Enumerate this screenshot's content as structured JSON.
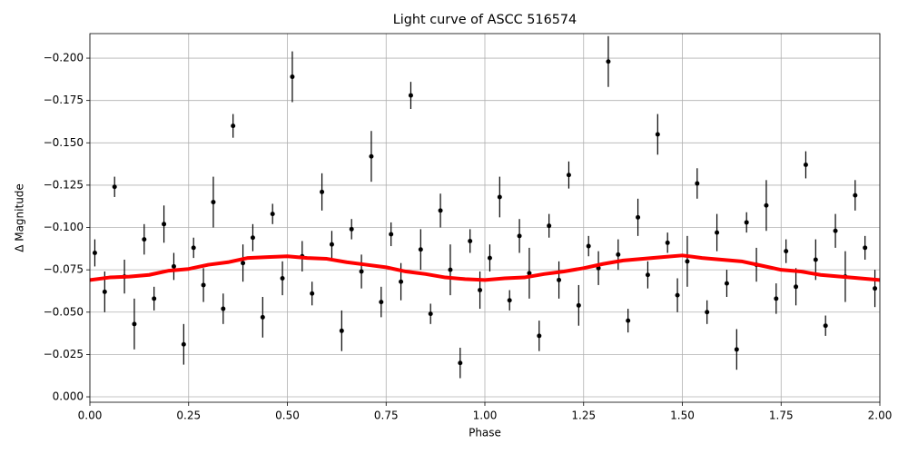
{
  "chart_data": {
    "type": "errorbar",
    "title": "Light curve of ASCC 516574",
    "x_label": "Phase",
    "y_label": "Δ Magnitude",
    "grid": true,
    "xlim": [
      0,
      2
    ],
    "ylim": [
      0.0032,
      -0.2145
    ],
    "xticks": [
      {
        "value": 0,
        "label": "0.00"
      },
      {
        "value": 0.25,
        "label": "0.25"
      },
      {
        "value": 0.5,
        "label": "0.50"
      },
      {
        "value": 0.75,
        "label": "0.75"
      },
      {
        "value": 1,
        "label": "1.00"
      },
      {
        "value": 1.25,
        "label": "1.25"
      },
      {
        "value": 1.5,
        "label": "1.50"
      },
      {
        "value": 1.75,
        "label": "1.75"
      },
      {
        "value": 2,
        "label": "2.00"
      }
    ],
    "yticks": [
      {
        "value": 0,
        "label": "0.000"
      },
      {
        "value": -0.025,
        "label": "−0.025"
      },
      {
        "value": -0.05,
        "label": "−0.050"
      },
      {
        "value": -0.075,
        "label": "−0.075"
      },
      {
        "value": -0.1,
        "label": "−0.100"
      },
      {
        "value": -0.125,
        "label": "−0.125"
      },
      {
        "value": -0.15,
        "label": "−0.150"
      },
      {
        "value": -0.175,
        "label": "−0.175"
      },
      {
        "value": -0.2,
        "label": "−0.200"
      }
    ],
    "series": [
      {
        "type": "errorbar",
        "color": "#000000",
        "x": [
          0.0125,
          0.0375,
          0.0625,
          0.0875,
          0.1125,
          0.1375,
          0.1625,
          0.1875,
          0.2125,
          0.2375,
          0.2625,
          0.2875,
          0.3125,
          0.3375,
          0.3625,
          0.3875,
          0.4125,
          0.4375,
          0.4625,
          0.4875,
          0.5125,
          0.5375,
          0.5625,
          0.5875,
          0.6125,
          0.6375,
          0.6625,
          0.6875,
          0.7125,
          0.7375,
          0.7625,
          0.7875,
          0.8125,
          0.8375,
          0.8625,
          0.8875,
          0.9125,
          0.9375,
          0.9625,
          0.9875,
          1.0125,
          1.0375,
          1.0625,
          1.0875,
          1.1125,
          1.1375,
          1.1625,
          1.1875,
          1.2125,
          1.2375,
          1.2625,
          1.2875,
          1.3125,
          1.3375,
          1.3625,
          1.3875,
          1.4125,
          1.4375,
          1.4625,
          1.4875,
          1.5125,
          1.5375,
          1.5625,
          1.5875,
          1.6125,
          1.6375,
          1.6625,
          1.6875,
          1.7125,
          1.7375,
          1.7625,
          1.7875,
          1.8125,
          1.8375,
          1.8625,
          1.8875,
          1.9125,
          1.9375,
          1.9625,
          1.9875
        ],
        "values": [
          -0.085,
          -0.062,
          -0.124,
          -0.071,
          -0.043,
          -0.093,
          -0.058,
          -0.102,
          -0.077,
          -0.031,
          -0.088,
          -0.066,
          -0.115,
          -0.052,
          -0.16,
          -0.079,
          -0.094,
          -0.047,
          -0.108,
          -0.07,
          -0.189,
          -0.083,
          -0.061,
          -0.121,
          -0.09,
          -0.039,
          -0.099,
          -0.074,
          -0.142,
          -0.056,
          -0.096,
          -0.068,
          -0.178,
          -0.087,
          -0.049,
          -0.11,
          -0.075,
          -0.02,
          -0.092,
          -0.063,
          -0.082,
          -0.118,
          -0.057,
          -0.095,
          -0.073,
          -0.036,
          -0.101,
          -0.069,
          -0.131,
          -0.054,
          -0.089,
          -0.076,
          -0.198,
          -0.084,
          -0.045,
          -0.106,
          -0.072,
          -0.155,
          -0.091,
          -0.06,
          -0.08,
          -0.126,
          -0.05,
          -0.097,
          -0.067,
          -0.028,
          -0.103,
          -0.078,
          -0.113,
          -0.058,
          -0.086,
          -0.065,
          -0.137,
          -0.081,
          -0.042,
          -0.098,
          -0.071,
          -0.119,
          -0.088,
          -0.064
        ],
        "errors": [
          0.008,
          0.012,
          0.006,
          0.01,
          0.015,
          0.009,
          0.007,
          0.011,
          0.008,
          0.012,
          0.006,
          0.01,
          0.015,
          0.009,
          0.007,
          0.011,
          0.008,
          0.012,
          0.006,
          0.01,
          0.015,
          0.009,
          0.007,
          0.011,
          0.008,
          0.012,
          0.006,
          0.01,
          0.015,
          0.009,
          0.007,
          0.011,
          0.008,
          0.012,
          0.006,
          0.01,
          0.015,
          0.009,
          0.007,
          0.011,
          0.008,
          0.012,
          0.006,
          0.01,
          0.015,
          0.009,
          0.007,
          0.011,
          0.008,
          0.012,
          0.006,
          0.01,
          0.015,
          0.009,
          0.007,
          0.011,
          0.008,
          0.012,
          0.006,
          0.01,
          0.015,
          0.009,
          0.007,
          0.011,
          0.008,
          0.012,
          0.006,
          0.01,
          0.015,
          0.009,
          0.007,
          0.011,
          0.008,
          0.012,
          0.006,
          0.01,
          0.015,
          0.009,
          0.007,
          0.011
        ]
      },
      {
        "type": "line",
        "color": "#ff0000",
        "x": [
          0,
          0.05,
          0.1,
          0.15,
          0.2,
          0.25,
          0.3,
          0.35,
          0.4,
          0.45,
          0.5,
          0.55,
          0.6,
          0.65,
          0.7,
          0.75,
          0.8,
          0.85,
          0.9,
          0.95,
          1,
          1.05,
          1.1,
          1.15,
          1.2,
          1.25,
          1.3,
          1.35,
          1.4,
          1.45,
          1.5,
          1.55,
          1.6,
          1.65,
          1.7,
          1.75,
          1.8,
          1.85,
          1.9,
          1.95,
          2
        ],
        "values": [
          -0.069,
          -0.0705,
          -0.071,
          -0.072,
          -0.0745,
          -0.0755,
          -0.078,
          -0.0795,
          -0.082,
          -0.0825,
          -0.083,
          -0.082,
          -0.0815,
          -0.0795,
          -0.078,
          -0.0765,
          -0.074,
          -0.0725,
          -0.0705,
          -0.0695,
          -0.069,
          -0.07,
          -0.0705,
          -0.0725,
          -0.074,
          -0.076,
          -0.0785,
          -0.0805,
          -0.0815,
          -0.0825,
          -0.0835,
          -0.082,
          -0.081,
          -0.08,
          -0.0775,
          -0.075,
          -0.074,
          -0.072,
          -0.071,
          -0.07,
          -0.069
        ]
      }
    ]
  }
}
